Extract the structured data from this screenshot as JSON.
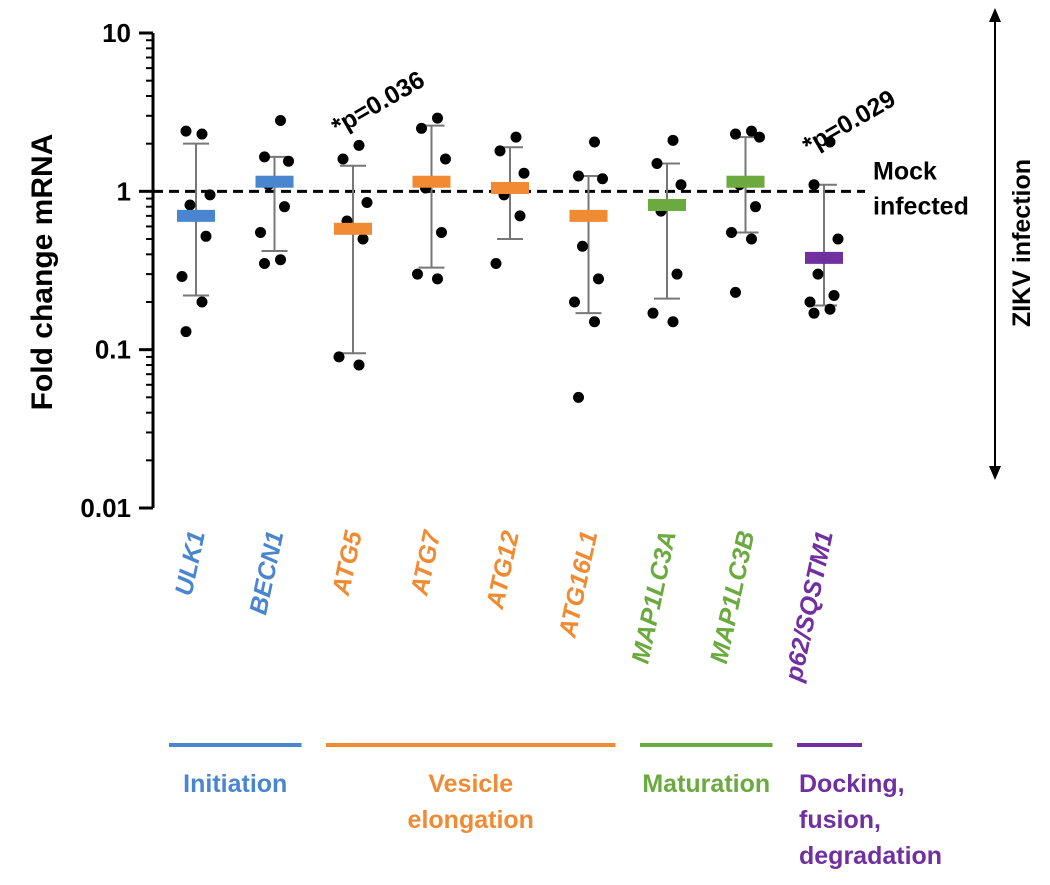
{
  "colors": {
    "initiation": "#4a86d0",
    "elongation": "#f08a33",
    "maturation": "#6aaa3e",
    "docking": "#7030a0",
    "points": "#000000",
    "errorbars": "#777777"
  },
  "chart_data": {
    "type": "scatter",
    "yscale": "log",
    "ylim": [
      0.01,
      10
    ],
    "ylabel": "Fold change mRNA",
    "ytick_labels": [
      "10",
      "1",
      "0.1",
      "0.01"
    ],
    "yticks": [
      10,
      1,
      0.1,
      0.01
    ],
    "reference_line": {
      "y": 1,
      "label": "Mock infected",
      "label_lines": [
        "Mock",
        "infected"
      ]
    },
    "side_axis_label": "ZIKV infection",
    "categories": [
      {
        "name": "ULK1",
        "group": "initiation",
        "mean": 0.7,
        "err_low": 0.22,
        "err_high": 2.0,
        "points": [
          2.3,
          2.4,
          0.95,
          0.82,
          0.52,
          0.29,
          0.2,
          0.13
        ]
      },
      {
        "name": "BECN1",
        "group": "initiation",
        "mean": 1.15,
        "err_low": 0.42,
        "err_high": 1.65,
        "points": [
          2.8,
          1.65,
          1.55,
          1.1,
          0.8,
          0.55,
          0.37,
          0.35
        ]
      },
      {
        "name": "ATG5",
        "group": "elongation",
        "mean": 0.58,
        "err_low": 0.095,
        "err_high": 1.45,
        "points": [
          1.95,
          1.6,
          0.85,
          0.65,
          0.5,
          0.09,
          0.08
        ]
      },
      {
        "name": "ATG7",
        "group": "elongation",
        "mean": 1.15,
        "err_low": 0.33,
        "err_high": 2.6,
        "points": [
          2.9,
          2.5,
          1.6,
          1.05,
          0.55,
          0.3,
          0.28
        ]
      },
      {
        "name": "ATG12",
        "group": "elongation",
        "mean": 1.05,
        "err_low": 0.5,
        "err_high": 1.9,
        "points": [
          2.2,
          1.8,
          1.3,
          0.95,
          0.7,
          0.35
        ]
      },
      {
        "name": "ATG16L1",
        "group": "elongation",
        "mean": 0.7,
        "err_low": 0.17,
        "err_high": 1.25,
        "points": [
          2.05,
          1.25,
          1.2,
          0.45,
          0.28,
          0.2,
          0.15,
          0.05
        ]
      },
      {
        "name": "MAP1LC3A",
        "group": "maturation",
        "mean": 0.82,
        "err_low": 0.21,
        "err_high": 1.5,
        "points": [
          2.1,
          1.5,
          1.1,
          0.75,
          0.3,
          0.17,
          0.15
        ]
      },
      {
        "name": "MAP1LC3B",
        "group": "maturation",
        "mean": 1.15,
        "err_low": 0.55,
        "err_high": 2.2,
        "points": [
          2.4,
          2.3,
          2.2,
          1.1,
          0.8,
          0.55,
          0.5,
          0.23
        ]
      },
      {
        "name": "p62/SQSTM1",
        "group": "docking",
        "mean": 0.38,
        "err_low": 0.19,
        "err_high": 1.1,
        "points": [
          2.05,
          1.1,
          0.5,
          0.3,
          0.22,
          0.2,
          0.18,
          0.17
        ]
      }
    ],
    "annotations": [
      {
        "category": "ATG5",
        "text": "*p=0.036"
      },
      {
        "category": "p62/SQSTM1",
        "text": "*p=0.029"
      }
    ],
    "groups": [
      {
        "key": "initiation",
        "lines": [
          "Initiation"
        ],
        "from": "ULK1",
        "to": "BECN1"
      },
      {
        "key": "elongation",
        "lines": [
          "Vesicle",
          "elongation"
        ],
        "from": "ATG5",
        "to": "ATG16L1"
      },
      {
        "key": "maturation",
        "lines": [
          "Maturation"
        ],
        "from": "MAP1LC3A",
        "to": "MAP1LC3B"
      },
      {
        "key": "docking",
        "lines": [
          "Docking,",
          "fusion,",
          "degradation"
        ],
        "from": "p62/SQSTM1",
        "to": "p62/SQSTM1"
      }
    ]
  }
}
